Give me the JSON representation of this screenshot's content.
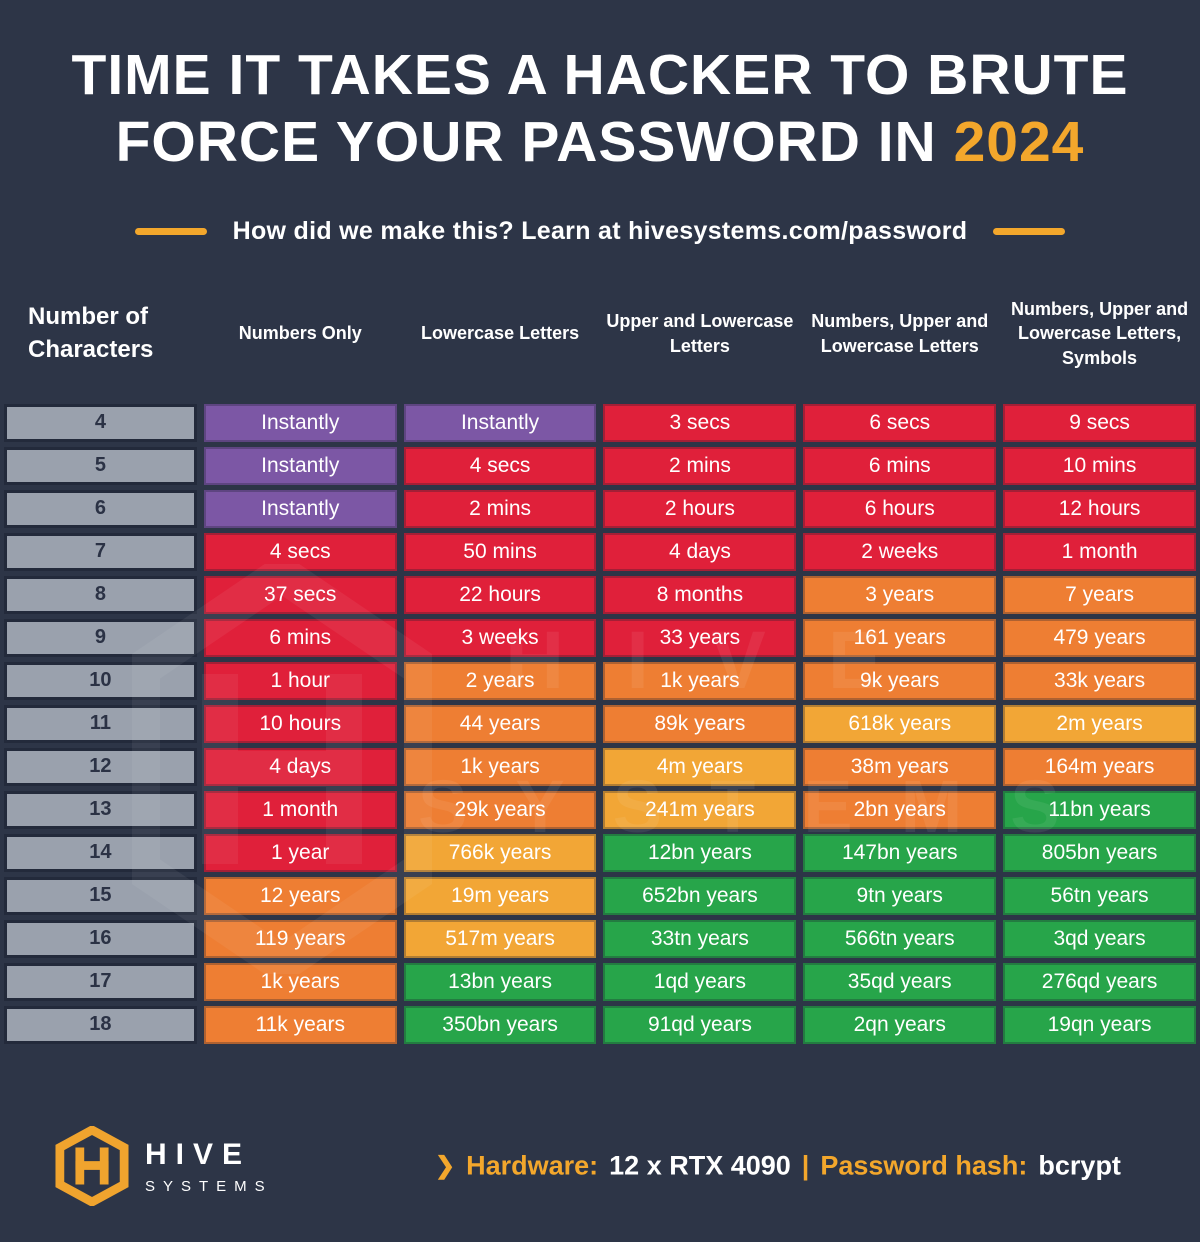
{
  "palette": {
    "background": "#2d3547",
    "accent_gold": "#f3a72c",
    "label_gray": "#9aa1ad"
  },
  "title": {
    "line1": "TIME IT TAKES A HACKER TO BRUTE",
    "line2": "FORCE YOUR PASSWORD IN",
    "year": "2024"
  },
  "subtitle": "How did we make this? Learn at hivesystems.com/password",
  "watermark": {
    "line1": "HIVE",
    "line2": "SYSTEMS"
  },
  "chart_data": {
    "type": "table",
    "title": "TIME IT TAKES A HACKER TO BRUTE FORCE YOUR PASSWORD IN 2024",
    "columns": [
      "Number of Characters",
      "Numbers Only",
      "Lowercase Letters",
      "Upper and Lowercase Letters",
      "Numbers, Upper and Lowercase Letters",
      "Numbers, Upper and Lowercase Letters, Symbols"
    ],
    "color_key": {
      "purple": "#7c57a5",
      "red": "#e0203a",
      "orange": "#ee7e33",
      "yellow": "#f2a636",
      "green": "#27a54a"
    },
    "rows": [
      {
        "chars": "4",
        "cells": [
          {
            "t": "Instantly",
            "c": "purple"
          },
          {
            "t": "Instantly",
            "c": "purple"
          },
          {
            "t": "3 secs",
            "c": "red"
          },
          {
            "t": "6 secs",
            "c": "red"
          },
          {
            "t": "9 secs",
            "c": "red"
          }
        ]
      },
      {
        "chars": "5",
        "cells": [
          {
            "t": "Instantly",
            "c": "purple"
          },
          {
            "t": "4 secs",
            "c": "red"
          },
          {
            "t": "2 mins",
            "c": "red"
          },
          {
            "t": "6 mins",
            "c": "red"
          },
          {
            "t": "10 mins",
            "c": "red"
          }
        ]
      },
      {
        "chars": "6",
        "cells": [
          {
            "t": "Instantly",
            "c": "purple"
          },
          {
            "t": "2 mins",
            "c": "red"
          },
          {
            "t": "2 hours",
            "c": "red"
          },
          {
            "t": "6 hours",
            "c": "red"
          },
          {
            "t": "12 hours",
            "c": "red"
          }
        ]
      },
      {
        "chars": "7",
        "cells": [
          {
            "t": "4 secs",
            "c": "red"
          },
          {
            "t": "50 mins",
            "c": "red"
          },
          {
            "t": "4 days",
            "c": "red"
          },
          {
            "t": "2 weeks",
            "c": "red"
          },
          {
            "t": "1 month",
            "c": "red"
          }
        ]
      },
      {
        "chars": "8",
        "cells": [
          {
            "t": "37 secs",
            "c": "red"
          },
          {
            "t": "22 hours",
            "c": "red"
          },
          {
            "t": "8 months",
            "c": "red"
          },
          {
            "t": "3 years",
            "c": "orange"
          },
          {
            "t": "7 years",
            "c": "orange"
          }
        ]
      },
      {
        "chars": "9",
        "cells": [
          {
            "t": "6 mins",
            "c": "red"
          },
          {
            "t": "3 weeks",
            "c": "red"
          },
          {
            "t": "33 years",
            "c": "red"
          },
          {
            "t": "161 years",
            "c": "orange"
          },
          {
            "t": "479 years",
            "c": "orange"
          }
        ]
      },
      {
        "chars": "10",
        "cells": [
          {
            "t": "1 hour",
            "c": "red"
          },
          {
            "t": "2 years",
            "c": "orange"
          },
          {
            "t": "1k years",
            "c": "orange"
          },
          {
            "t": "9k years",
            "c": "orange"
          },
          {
            "t": "33k years",
            "c": "orange"
          }
        ]
      },
      {
        "chars": "11",
        "cells": [
          {
            "t": "10 hours",
            "c": "red"
          },
          {
            "t": "44 years",
            "c": "orange"
          },
          {
            "t": "89k years",
            "c": "orange"
          },
          {
            "t": "618k years",
            "c": "yellow"
          },
          {
            "t": "2m years",
            "c": "yellow"
          }
        ]
      },
      {
        "chars": "12",
        "cells": [
          {
            "t": "4 days",
            "c": "red"
          },
          {
            "t": "1k years",
            "c": "orange"
          },
          {
            "t": "4m years",
            "c": "yellow"
          },
          {
            "t": "38m years",
            "c": "orange"
          },
          {
            "t": "164m years",
            "c": "orange"
          }
        ]
      },
      {
        "chars": "13",
        "cells": [
          {
            "t": "1 month",
            "c": "red"
          },
          {
            "t": "29k years",
            "c": "orange"
          },
          {
            "t": "241m years",
            "c": "yellow"
          },
          {
            "t": "2bn years",
            "c": "orange"
          },
          {
            "t": "11bn years",
            "c": "green"
          }
        ]
      },
      {
        "chars": "14",
        "cells": [
          {
            "t": "1 year",
            "c": "red"
          },
          {
            "t": "766k years",
            "c": "yellow"
          },
          {
            "t": "12bn years",
            "c": "green"
          },
          {
            "t": "147bn years",
            "c": "green"
          },
          {
            "t": "805bn years",
            "c": "green"
          }
        ]
      },
      {
        "chars": "15",
        "cells": [
          {
            "t": "12 years",
            "c": "orange"
          },
          {
            "t": "19m years",
            "c": "yellow"
          },
          {
            "t": "652bn years",
            "c": "green"
          },
          {
            "t": "9tn years",
            "c": "green"
          },
          {
            "t": "56tn years",
            "c": "green"
          }
        ]
      },
      {
        "chars": "16",
        "cells": [
          {
            "t": "119 years",
            "c": "orange"
          },
          {
            "t": "517m years",
            "c": "yellow"
          },
          {
            "t": "33tn years",
            "c": "green"
          },
          {
            "t": "566tn years",
            "c": "green"
          },
          {
            "t": "3qd years",
            "c": "green"
          }
        ]
      },
      {
        "chars": "17",
        "cells": [
          {
            "t": "1k years",
            "c": "orange"
          },
          {
            "t": "13bn years",
            "c": "green"
          },
          {
            "t": "1qd years",
            "c": "green"
          },
          {
            "t": "35qd years",
            "c": "green"
          },
          {
            "t": "276qd years",
            "c": "green"
          }
        ]
      },
      {
        "chars": "18",
        "cells": [
          {
            "t": "11k years",
            "c": "orange"
          },
          {
            "t": "350bn years",
            "c": "green"
          },
          {
            "t": "91qd years",
            "c": "green"
          },
          {
            "t": "2qn years",
            "c": "green"
          },
          {
            "t": "19qn years",
            "c": "green"
          }
        ]
      }
    ]
  },
  "footer": {
    "brand": {
      "name_top": "HIVE",
      "name_bottom": "SYSTEMS"
    },
    "chevron": "❯",
    "hardware_label": "Hardware:",
    "hardware_value": "12 x RTX 4090",
    "divider": "|",
    "hash_label": "Password hash:",
    "hash_value": "bcrypt"
  }
}
